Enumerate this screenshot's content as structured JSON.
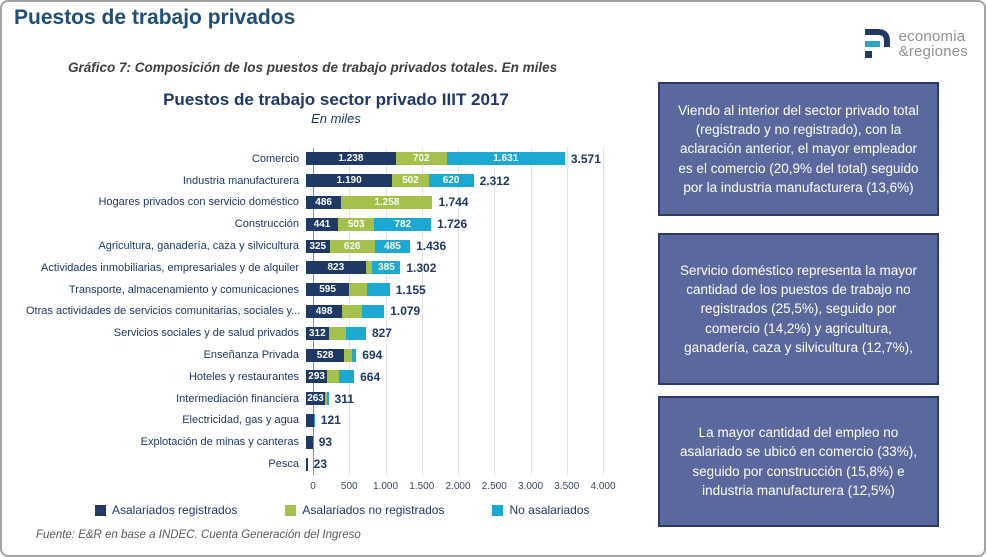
{
  "header": {
    "title": "Puestos de trabajo privados",
    "subtitle": "Gráfico 7: Composición de los puestos de trabajo privados totales. En miles"
  },
  "logo": {
    "line1": "economia",
    "line2": "&regiones"
  },
  "chart_data": {
    "type": "bar",
    "orientation": "horizontal",
    "stacked": true,
    "title": "Puestos de trabajo sector privado IIIT 2017",
    "subtitle": "En miles",
    "xlim": [
      0,
      4000
    ],
    "grid": true,
    "x_ticks": [
      "0",
      "500",
      "1.000",
      "1.500",
      "2.000",
      "2.500",
      "3.000",
      "3.500",
      "4.000"
    ],
    "series": [
      {
        "name": "Asalariados registrados",
        "color": "#1F3864"
      },
      {
        "name": "Asalariados no registrados",
        "color": "#A3C14B"
      },
      {
        "name": "No asalariados",
        "color": "#1BA8D3"
      }
    ],
    "rows": [
      {
        "label": "Comercio",
        "values": [
          1238,
          702,
          1631
        ],
        "seg_labels": [
          "1.238",
          "702",
          "1.631"
        ],
        "total_label": "3.571"
      },
      {
        "label": "Industria manufacturera",
        "values": [
          1190,
          502,
          620
        ],
        "seg_labels": [
          "1.190",
          "502",
          "620"
        ],
        "total_label": "2.312"
      },
      {
        "label": "Hogares privados con servicio doméstico",
        "values": [
          486,
          1258,
          0
        ],
        "seg_labels": [
          "486",
          "1.258",
          ""
        ],
        "total_label": "1.744"
      },
      {
        "label": "Construcción",
        "values": [
          441,
          503,
          782
        ],
        "seg_labels": [
          "441",
          "503",
          "782"
        ],
        "total_label": "1.726"
      },
      {
        "label": "Agricultura, ganadería, caza y silvicultura",
        "values": [
          325,
          626,
          485
        ],
        "seg_labels": [
          "325",
          "626",
          "485"
        ],
        "total_label": "1.436"
      },
      {
        "label": "Actividades inmobiliarias, empresariales y de alquiler",
        "values": [
          823,
          94,
          385
        ],
        "seg_labels": [
          "823",
          "",
          "385"
        ],
        "total_label": "1.302"
      },
      {
        "label": "Transporte, almacenamiento y comunicaciones",
        "values": [
          595,
          240,
          320
        ],
        "seg_labels": [
          "595",
          "",
          ""
        ],
        "total_label": "1.155"
      },
      {
        "label": "Otras actividades de servicios comunitarias, sociales y...",
        "values": [
          498,
          280,
          301
        ],
        "seg_labels": [
          "498",
          "",
          ""
        ],
        "total_label": "1.079"
      },
      {
        "label": "Servicios sociales y de salud privados",
        "values": [
          312,
          235,
          280
        ],
        "seg_labels": [
          "312",
          "",
          ""
        ],
        "total_label": "827"
      },
      {
        "label": "Enseñanza Privada",
        "values": [
          528,
          110,
          56
        ],
        "seg_labels": [
          "528",
          "",
          ""
        ],
        "total_label": "694"
      },
      {
        "label": "Hoteles y restaurantes",
        "values": [
          293,
          156,
          215
        ],
        "seg_labels": [
          "293",
          "",
          ""
        ],
        "total_label": "664"
      },
      {
        "label": "Intermediación financiera",
        "values": [
          263,
          25,
          23
        ],
        "seg_labels": [
          "263",
          "",
          ""
        ],
        "total_label": "311"
      },
      {
        "label": "Electricidad, gas y agua",
        "values": [
          108,
          8,
          5
        ],
        "seg_labels": [
          "",
          "",
          ""
        ],
        "total_label": "121"
      },
      {
        "label": "Explotación de minas y canteras",
        "values": [
          93,
          0,
          0
        ],
        "seg_labels": [
          "",
          "",
          ""
        ],
        "total_label": "93"
      },
      {
        "label": "Pesca",
        "values": [
          23,
          0,
          0
        ],
        "seg_labels": [
          "",
          "",
          ""
        ],
        "total_label": "23"
      }
    ]
  },
  "legend": {
    "items": [
      {
        "label": "Asalariados registrados",
        "color": "#1F3864"
      },
      {
        "label": "Asalariados no registrados",
        "color": "#A3C14B"
      },
      {
        "label": "No asalariados",
        "color": "#1BA8D3"
      }
    ]
  },
  "annotations": {
    "boxes": [
      {
        "text": "Viendo al interior del sector privado total (registrado y no registrado), con la aclaración anterior, el mayor empleador es el comercio (20,9% del total) seguido por la industria manufacturera (13,6%)"
      },
      {
        "text": "Servicio doméstico representa la mayor cantidad de los puestos de trabajo no registrados (25,5%), seguido por comercio (14,2%) y agricultura, ganadería, caza y silvicultura (12,7%),"
      },
      {
        "text": "La mayor cantidad del empleo no asalariado se ubicó en comercio (33%), seguido por construcción (15,8%) e industria manufacturera (12,5%)"
      }
    ]
  },
  "footer": {
    "source": "Fuente: E&R en base a INDEC. Cuenta Generación del Ingreso"
  },
  "colors": {
    "page_title": "#1F4E79",
    "chart_text": "#1F3864",
    "note_bg": "#5A689D",
    "note_border": "#2E3A66"
  }
}
